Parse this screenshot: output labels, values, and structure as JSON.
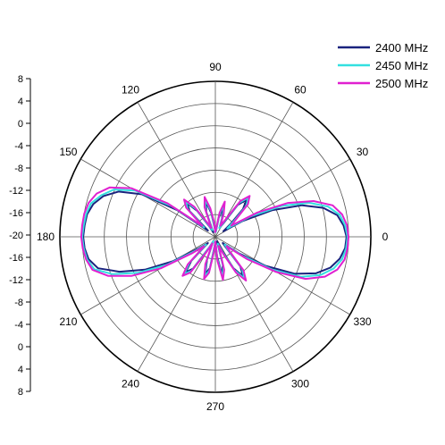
{
  "chart_data": {
    "type": "polar-line",
    "angle_unit": "deg",
    "angle_ticks": [
      0,
      30,
      60,
      90,
      120,
      150,
      180,
      210,
      240,
      270,
      300,
      330
    ],
    "angle_labels": [
      "0",
      "30",
      "60",
      "90",
      "120",
      "150",
      "180",
      "210",
      "240",
      "270",
      "300",
      "330"
    ],
    "radial_ticks": [
      8,
      4,
      0,
      -4,
      -8,
      -12,
      -16,
      -20
    ],
    "radial_labels": [
      "8",
      "4",
      "0",
      "-4",
      "-8",
      "-12",
      "-16",
      "-20"
    ],
    "radial_axis_labels_top": [
      "8",
      "4",
      "0",
      "-4",
      "-8",
      "-12",
      "-16",
      "-20",
      "-16",
      "-12",
      "-8",
      "-4",
      "0",
      "4",
      "8"
    ],
    "rlim": [
      -24,
      8
    ],
    "grid": true,
    "legend_position": "top-right",
    "series": [
      {
        "name": "2400 MHz",
        "color": "#1a237e",
        "theta": [
          0,
          5,
          10,
          15,
          20,
          25,
          30,
          35,
          40,
          45,
          50,
          55,
          60,
          65,
          70,
          75,
          80,
          85,
          90,
          95,
          100,
          105,
          110,
          115,
          120,
          125,
          130,
          135,
          140,
          145,
          150,
          155,
          160,
          165,
          170,
          175,
          180,
          185,
          190,
          195,
          200,
          205,
          210,
          215,
          220,
          225,
          230,
          235,
          240,
          245,
          250,
          255,
          260,
          265,
          270,
          275,
          280,
          285,
          290,
          295,
          300,
          305,
          310,
          315,
          320,
          325,
          330,
          335,
          340,
          345,
          350,
          355
        ],
        "r": [
          3.0,
          2.5,
          1.5,
          -1.0,
          -5.0,
          -11.0,
          -17.5,
          -22.0,
          -20.0,
          -16.0,
          -14.0,
          -16.0,
          -21.0,
          -22.0,
          -20.0,
          -17.5,
          -20.0,
          -23.0,
          -23.0,
          -22.0,
          -19.0,
          -16.5,
          -18.5,
          -23.0,
          -21.5,
          -17.5,
          -15.0,
          -16.5,
          -22.0,
          -14.5,
          -6.5,
          -2.0,
          0.5,
          2.0,
          2.8,
          3.0,
          3.2,
          3.0,
          2.5,
          1.0,
          -3.0,
          -8.0,
          -14.0,
          -20.0,
          -22.0,
          -17.0,
          -14.5,
          -16.0,
          -21.5,
          -23.0,
          -19.0,
          -16.0,
          -17.5,
          -22.0,
          -23.0,
          -20.0,
          -16.0,
          -18.0,
          -23.0,
          -21.0,
          -16.5,
          -14.0,
          -16.0,
          -21.0,
          -22.0,
          -18.0,
          -12.0,
          -6.0,
          -2.0,
          0.5,
          2.0,
          2.8
        ]
      },
      {
        "name": "2450 MHz",
        "color": "#33e0e0",
        "theta": [
          0,
          5,
          10,
          15,
          20,
          25,
          30,
          35,
          40,
          45,
          50,
          55,
          60,
          65,
          70,
          75,
          80,
          85,
          90,
          95,
          100,
          105,
          110,
          115,
          120,
          125,
          130,
          135,
          140,
          145,
          150,
          155,
          160,
          165,
          170,
          175,
          180,
          185,
          190,
          195,
          200,
          205,
          210,
          215,
          220,
          225,
          230,
          235,
          240,
          245,
          250,
          255,
          260,
          265,
          270,
          275,
          280,
          285,
          290,
          295,
          300,
          305,
          310,
          315,
          320,
          325,
          330,
          335,
          340,
          345,
          350,
          355
        ],
        "r": [
          3.2,
          2.8,
          2.0,
          0.0,
          -3.5,
          -9.0,
          -15.5,
          -21.0,
          -19.0,
          -15.0,
          -13.5,
          -15.5,
          -20.5,
          -22.0,
          -19.5,
          -17.0,
          -19.5,
          -23.0,
          -23.0,
          -21.5,
          -18.5,
          -16.0,
          -18.0,
          -22.5,
          -21.0,
          -17.0,
          -14.5,
          -16.0,
          -21.0,
          -13.0,
          -5.0,
          -1.0,
          1.0,
          2.5,
          3.0,
          3.2,
          3.4,
          3.2,
          2.8,
          1.8,
          -1.5,
          -6.5,
          -12.5,
          -19.0,
          -21.5,
          -16.5,
          -14.0,
          -15.5,
          -21.0,
          -23.0,
          -18.5,
          -15.5,
          -17.0,
          -21.5,
          -23.0,
          -19.5,
          -15.5,
          -17.5,
          -22.5,
          -20.5,
          -16.0,
          -13.5,
          -15.5,
          -20.5,
          -21.5,
          -17.0,
          -10.5,
          -4.5,
          -1.0,
          1.2,
          2.5,
          3.0
        ]
      },
      {
        "name": "2500 MHz",
        "color": "#e020d0",
        "theta": [
          0,
          5,
          10,
          15,
          20,
          25,
          30,
          35,
          40,
          45,
          50,
          55,
          60,
          65,
          70,
          75,
          80,
          85,
          90,
          95,
          100,
          105,
          110,
          115,
          120,
          125,
          130,
          135,
          140,
          145,
          150,
          155,
          160,
          165,
          170,
          175,
          180,
          185,
          190,
          195,
          200,
          205,
          210,
          215,
          220,
          225,
          230,
          235,
          240,
          245,
          250,
          255,
          260,
          265,
          270,
          275,
          280,
          285,
          290,
          295,
          300,
          305,
          310,
          315,
          320,
          325,
          330,
          335,
          340,
          345,
          350,
          355
        ],
        "r": [
          3.4,
          3.2,
          2.5,
          1.0,
          -2.5,
          -7.5,
          -14.0,
          -20.0,
          -18.5,
          -14.5,
          -13.0,
          -15.0,
          -20.0,
          -21.5,
          -19.0,
          -16.5,
          -19.0,
          -22.5,
          -23.0,
          -21.0,
          -18.0,
          -15.5,
          -17.5,
          -22.0,
          -20.5,
          -16.5,
          -14.0,
          -15.5,
          -20.5,
          -12.0,
          -4.0,
          0.0,
          2.0,
          3.0,
          3.4,
          3.5,
          3.6,
          3.4,
          3.0,
          2.2,
          -0.5,
          -5.0,
          -11.0,
          -18.0,
          -21.0,
          -16.0,
          -13.5,
          -15.0,
          -20.5,
          -22.5,
          -18.0,
          -15.0,
          -16.5,
          -21.0,
          -23.0,
          -19.0,
          -15.0,
          -17.0,
          -22.0,
          -20.0,
          -15.5,
          -13.0,
          -15.0,
          -20.0,
          -21.0,
          -16.0,
          -9.5,
          -3.5,
          0.0,
          2.0,
          3.0,
          3.3
        ]
      }
    ]
  }
}
